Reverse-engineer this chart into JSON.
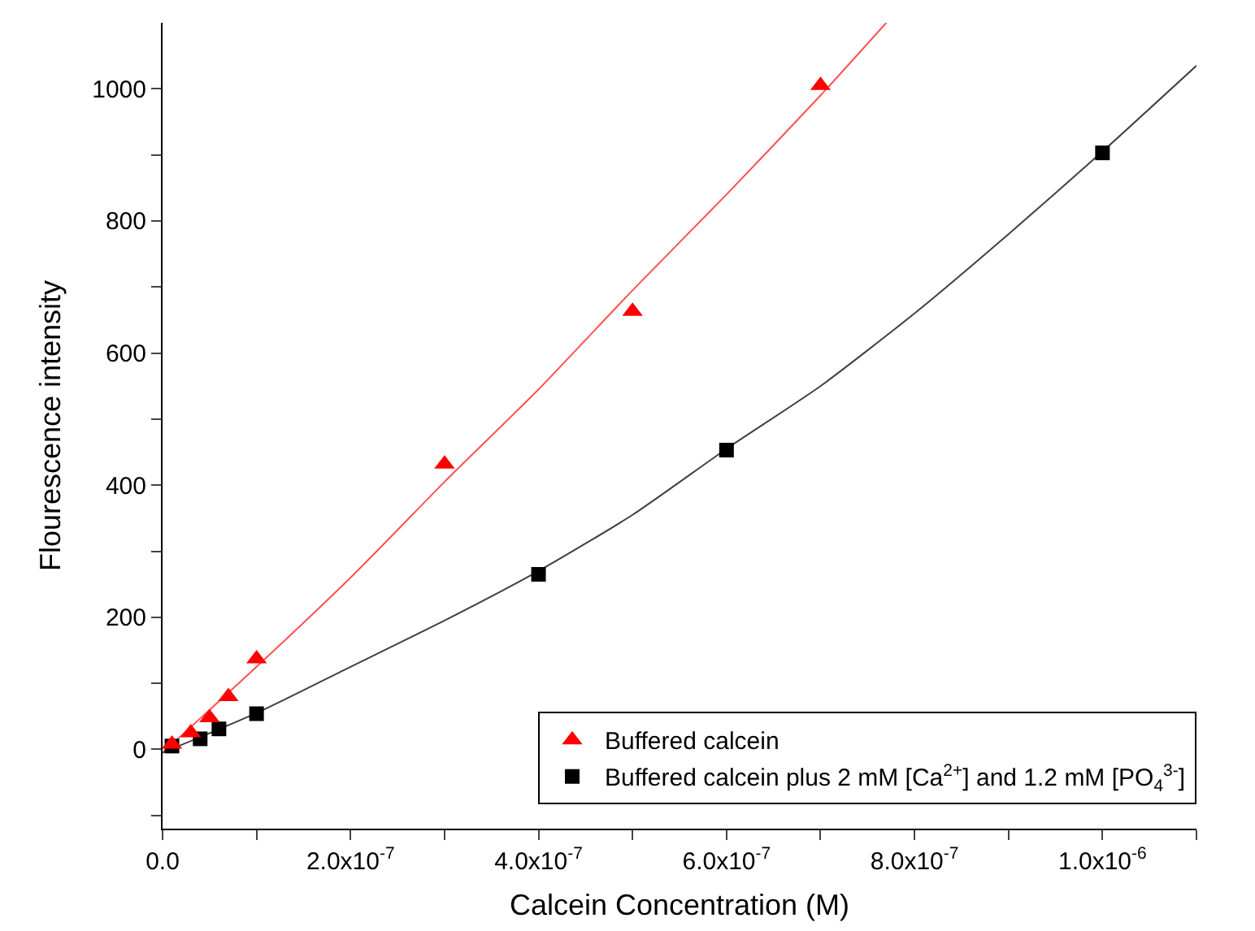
{
  "chart_data": {
    "type": "scatter",
    "xlabel": "Calcein Concentration (M)",
    "ylabel": "Flourescence intensity",
    "series": [
      {
        "name": "Buffered calcein",
        "color": "#ff0000",
        "marker": "triangle",
        "x": [
          1e-08,
          3e-08,
          5e-08,
          7e-08,
          1e-07,
          3e-07,
          5e-07,
          7e-07
        ],
        "values": [
          8,
          25,
          48,
          80,
          137,
          432,
          663,
          1005
        ]
      },
      {
        "name": "Buffered calcein plus 2 mM [Ca$^{2+}$] and 1.2 mM [PO$_{4}$$^{3-}$]",
        "color": "#000000",
        "marker": "square",
        "x": [
          1e-08,
          4e-08,
          6e-08,
          1e-07,
          4e-07,
          6e-07,
          1e-06
        ],
        "values": [
          5,
          16,
          31,
          54,
          265,
          453,
          903
        ]
      },
      {
        "type": "line",
        "color": "#ff5050",
        "x": [
          0,
          1e-07,
          2e-07,
          3e-07,
          4e-07,
          5e-07,
          6e-07,
          7e-07,
          7.7e-07
        ],
        "values": [
          -5,
          125,
          260,
          405,
          545,
          695,
          840,
          990,
          1100
        ]
      },
      {
        "type": "line",
        "color": "#404040",
        "x": [
          0,
          1e-07,
          2e-07,
          3e-07,
          4e-07,
          5e-07,
          6e-07,
          7e-07,
          8e-07,
          9e-07,
          1e-06,
          1.1e-06
        ],
        "values": [
          -5,
          55,
          125,
          195,
          270,
          355,
          455,
          550,
          660,
          780,
          905,
          1035
        ]
      }
    ],
    "xlim": [
      0,
      1.1e-06
    ],
    "xticks": [
      {
        "value": 0,
        "label": "0.0"
      },
      {
        "value": 1e-07,
        "label": null
      },
      {
        "value": 2e-07,
        "label": "2.0x10$^{-7}$"
      },
      {
        "value": 3e-07,
        "label": null
      },
      {
        "value": 4e-07,
        "label": "4.0x10$^{-7}$"
      },
      {
        "value": 5e-07,
        "label": null
      },
      {
        "value": 6e-07,
        "label": "6.0x10$^{-7}$"
      },
      {
        "value": 7e-07,
        "label": null
      },
      {
        "value": 8e-07,
        "label": "8.0x10$^{-7}$"
      },
      {
        "value": 9e-07,
        "label": null
      },
      {
        "value": 1e-06,
        "label": "1.0x10$^{-6}$"
      },
      {
        "value": 1.1e-06,
        "label": null
      }
    ],
    "ylim": [
      -120,
      1100
    ],
    "yticks": [
      {
        "value": -100,
        "label": null
      },
      0,
      {
        "value": 100,
        "label": null
      },
      200,
      {
        "value": 300,
        "label": null
      },
      400,
      {
        "value": 500,
        "label": null
      },
      600,
      {
        "value": 700,
        "label": null
      },
      800,
      {
        "value": 900,
        "label": null
      },
      1000
    ],
    "grid": false,
    "legend": "bottom right",
    "line_style": "solid"
  }
}
